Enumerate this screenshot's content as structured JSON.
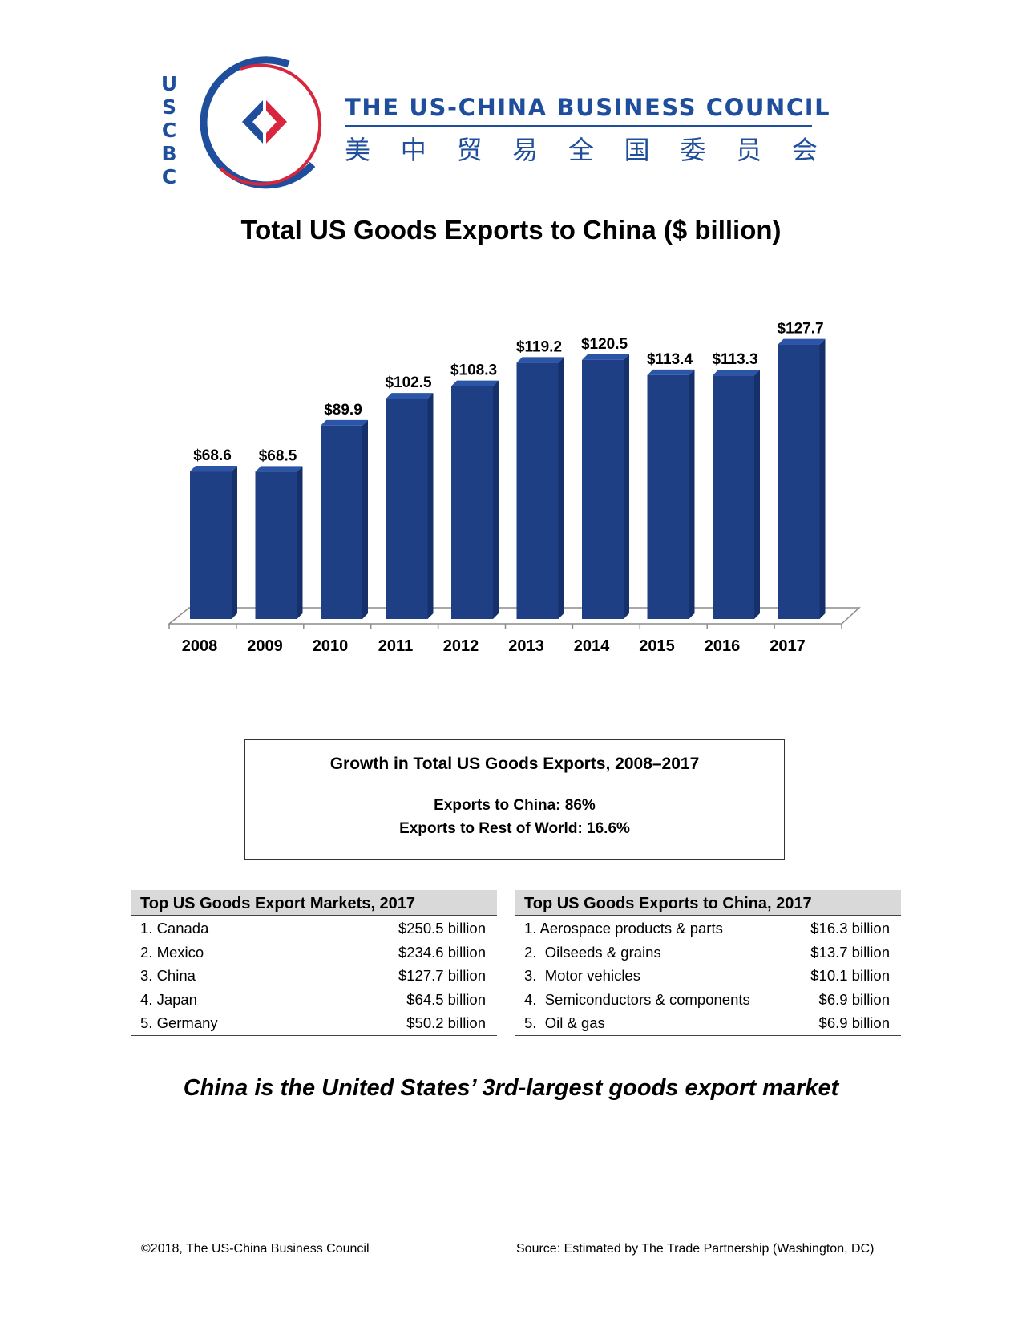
{
  "header": {
    "logo_letters": [
      "U",
      "S",
      "C",
      "B",
      "C"
    ],
    "org_name": "THE US-CHINA BUSINESS COUNCIL",
    "org_name_cn": [
      "美",
      "中",
      "贸",
      "易",
      "全",
      "国",
      "委",
      "员",
      "会"
    ],
    "brand_colors": {
      "blue": "#1f4e9c",
      "red": "#d7263d"
    }
  },
  "page_title": "Total US Goods Exports to China ($ billion)",
  "chart_data": {
    "type": "bar",
    "title": "Total US Goods Exports to China ($ billion)",
    "categories": [
      "2008",
      "2009",
      "2010",
      "2011",
      "2012",
      "2013",
      "2014",
      "2015",
      "2016",
      "2017"
    ],
    "values": [
      68.6,
      68.5,
      89.9,
      102.5,
      108.3,
      119.2,
      120.5,
      113.4,
      113.3,
      127.7
    ],
    "value_labels": [
      "$68.6",
      "$68.5",
      "$89.9",
      "$102.5",
      "$108.3",
      "$119.2",
      "$120.5",
      "$113.4",
      "$113.3",
      "$127.7"
    ],
    "xlabel": "",
    "ylabel": "",
    "ylim": [
      0,
      135
    ],
    "grid": false,
    "style": "3d",
    "bar_color": "#1f3f85"
  },
  "growth_box": {
    "title": "Growth in Total US Goods Exports, 2008–2017",
    "line1": "Exports to China: 86%",
    "line2": "Exports to Rest of World: 16.6%"
  },
  "markets_table": {
    "header": "Top US Goods Export Markets, 2017",
    "rows": [
      {
        "name": "1. Canada",
        "value": "$250.5 billion"
      },
      {
        "name": "2. Mexico",
        "value": "$234.6 billion"
      },
      {
        "name": "3. China",
        "value": "$127.7 billion"
      },
      {
        "name": "4. Japan",
        "value": "$64.5 billion"
      },
      {
        "name": "5. Germany",
        "value": "$50.2 billion"
      }
    ]
  },
  "exports_table": {
    "header": "Top US Goods Exports to China, 2017",
    "rows": [
      {
        "name": "1. Aerospace products & parts",
        "value": "$16.3 billion"
      },
      {
        "name": "2.  Oilseeds & grains",
        "value": "$13.7 billion"
      },
      {
        "name": "3.  Motor vehicles",
        "value": "$10.1 billion"
      },
      {
        "name": "4.  Semiconductors & components",
        "value": "$6.9 billion"
      },
      {
        "name": "5.  Oil & gas",
        "value": "$6.9 billion"
      }
    ]
  },
  "tagline": "China is the United States’ 3rd-largest goods export market",
  "footer": {
    "copyright": "©2018, The US-China Business Council",
    "source": "Source: Estimated by The Trade Partnership (Washington, DC)"
  }
}
